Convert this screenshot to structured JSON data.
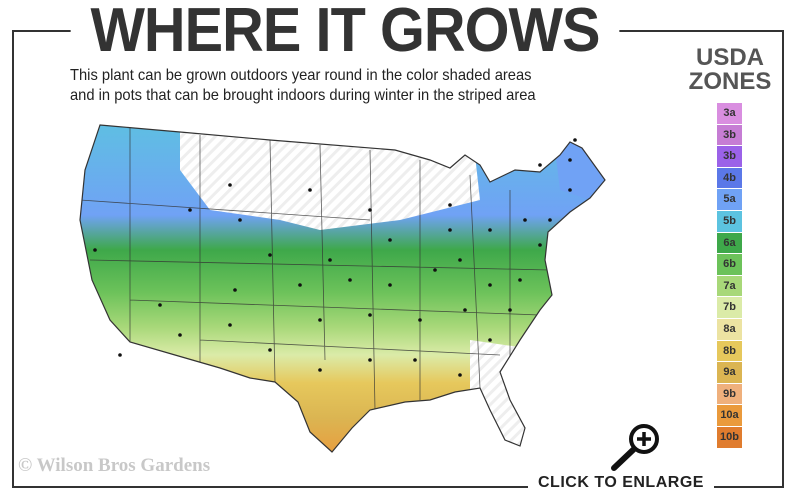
{
  "header": {
    "title": "WHERE IT GROWS",
    "subtitle_line1": "This plant can be grown outdoors year round in the color shaded areas",
    "subtitle_line2": "and in pots that can be brought indoors during winter in the striped area"
  },
  "legend": {
    "title_line1": "USDA",
    "title_line2": "ZONES",
    "zones": [
      {
        "label": "3a",
        "color": "#d98ee0"
      },
      {
        "label": "3b",
        "color": "#c67dd4"
      },
      {
        "label": "3b",
        "color": "#9b62e8"
      },
      {
        "label": "4b",
        "color": "#5b78e8"
      },
      {
        "label": "5a",
        "color": "#70a2f5"
      },
      {
        "label": "5b",
        "color": "#5cc3e0"
      },
      {
        "label": "6a",
        "color": "#3ea84a"
      },
      {
        "label": "6b",
        "color": "#6cc25a"
      },
      {
        "label": "7a",
        "color": "#a8d879"
      },
      {
        "label": "7b",
        "color": "#dbeba8"
      },
      {
        "label": "8a",
        "color": "#ece3a2"
      },
      {
        "label": "8b",
        "color": "#e6c85c"
      },
      {
        "label": "9a",
        "color": "#dbb552"
      },
      {
        "label": "9b",
        "color": "#efb07c"
      },
      {
        "label": "10a",
        "color": "#ea9a3c"
      },
      {
        "label": "10b",
        "color": "#e07c2e"
      }
    ]
  },
  "map": {
    "stripe_area_color": "#ffffff"
  },
  "footer": {
    "copyright": "© Wilson Bros Gardens",
    "enlarge_label": "CLICK TO ENLARGE",
    "enlarge_icon": "magnifier-plus-icon"
  }
}
